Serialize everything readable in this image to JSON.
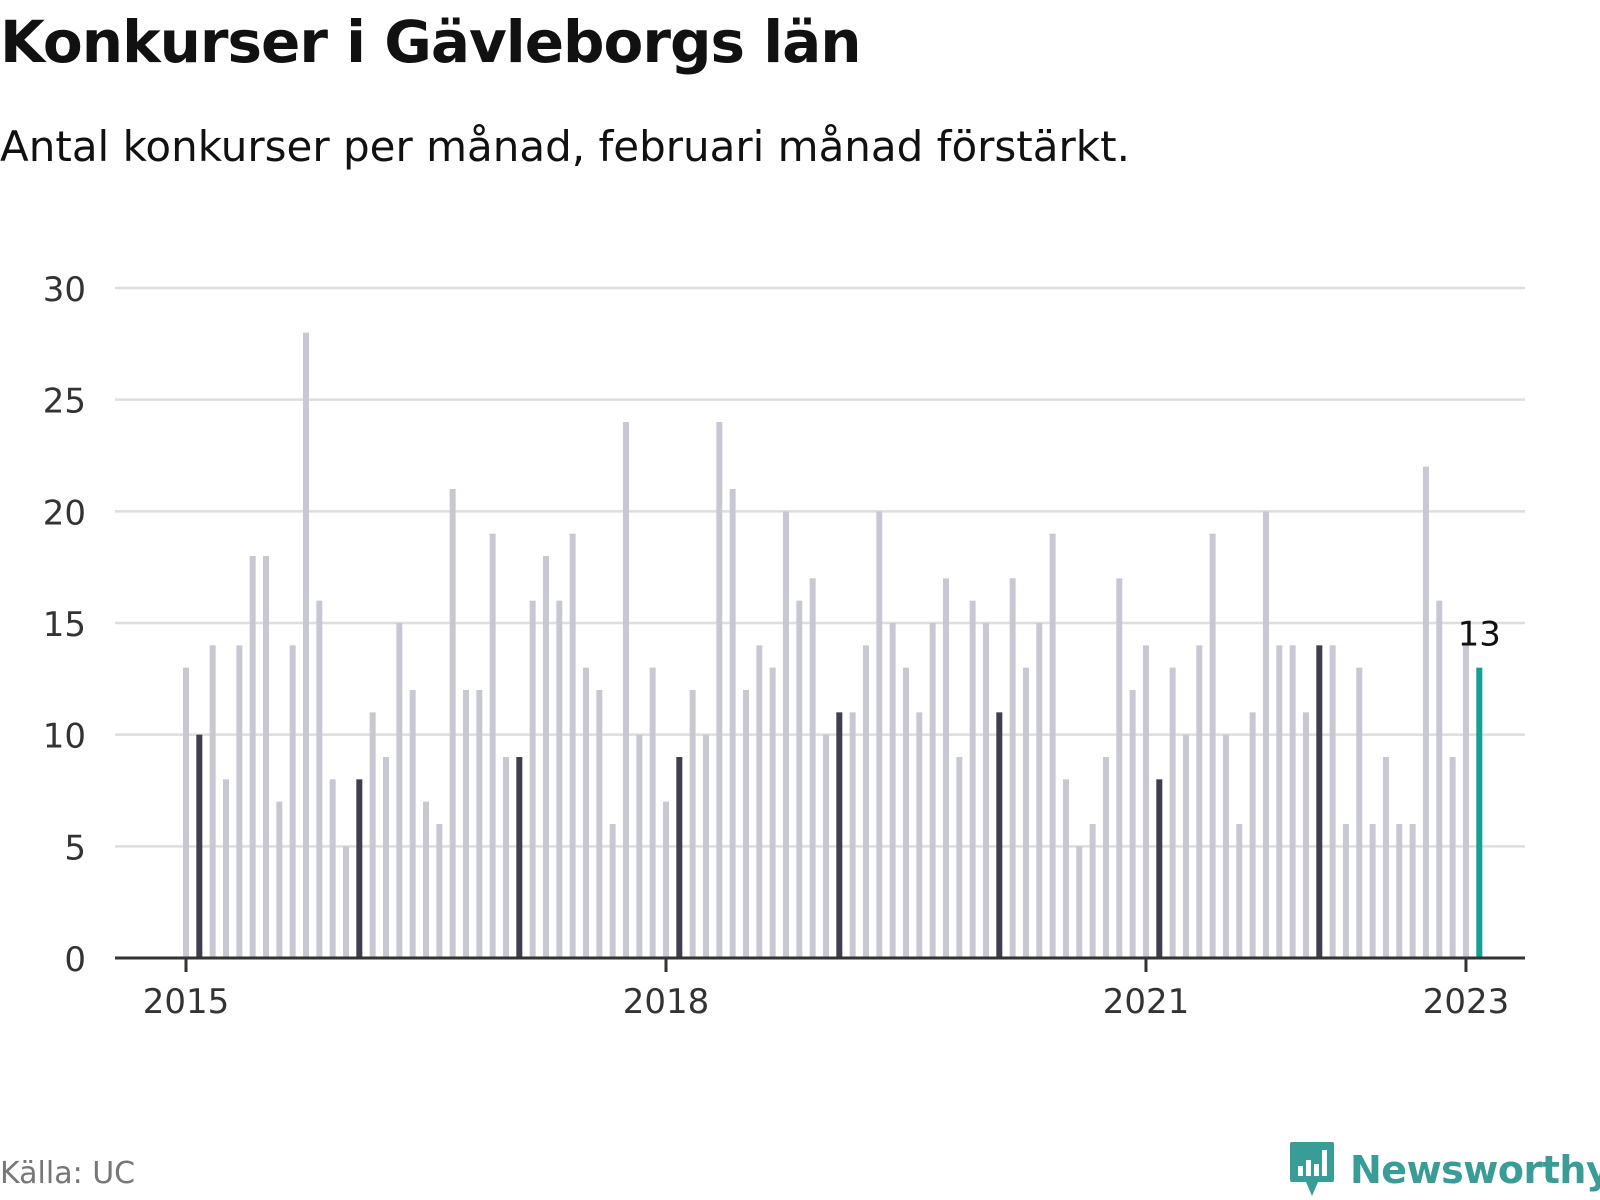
{
  "title": "Konkurser i Gävleborgs län",
  "subtitle": "Antal konkurser per månad, februari månad förstärkt.",
  "source": "Källa: UC",
  "brand": "Newsworthy",
  "colors": {
    "bar": "#c8c8d2",
    "february": "#3f3f4b",
    "latest": "#14a093",
    "grid": "#dedede",
    "axis": "#333333",
    "brand": "#3a9c96"
  },
  "chart_data": {
    "type": "bar",
    "start": "2015-01",
    "end": "2023-02",
    "ylim": [
      0,
      30
    ],
    "yticks": [
      0,
      5,
      10,
      15,
      20,
      25,
      30
    ],
    "xticks": [
      {
        "date": "2015-01",
        "label": "2015"
      },
      {
        "date": "2018-01",
        "label": "2018"
      },
      {
        "date": "2021-01",
        "label": "2021"
      },
      {
        "date": "2023-01",
        "label": "2023"
      }
    ],
    "highlight": "februari",
    "annotation": {
      "date": "2023-02",
      "label": "13"
    },
    "values": [
      13,
      10,
      14,
      8,
      14,
      18,
      18,
      7,
      14,
      28,
      16,
      8,
      5,
      8,
      11,
      9,
      15,
      12,
      7,
      6,
      21,
      12,
      12,
      19,
      9,
      9,
      16,
      18,
      16,
      19,
      13,
      12,
      6,
      24,
      10,
      13,
      7,
      9,
      12,
      10,
      24,
      21,
      12,
      14,
      13,
      20,
      16,
      17,
      10,
      11,
      11,
      14,
      20,
      15,
      13,
      11,
      15,
      17,
      9,
      16,
      15,
      11,
      17,
      13,
      15,
      19,
      8,
      5,
      6,
      9,
      17,
      12,
      14,
      8,
      13,
      10,
      14,
      19,
      10,
      6,
      11,
      20,
      14,
      14,
      11,
      14,
      14,
      6,
      13,
      6,
      9,
      6,
      6,
      22,
      16,
      9,
      14,
      13
    ]
  }
}
